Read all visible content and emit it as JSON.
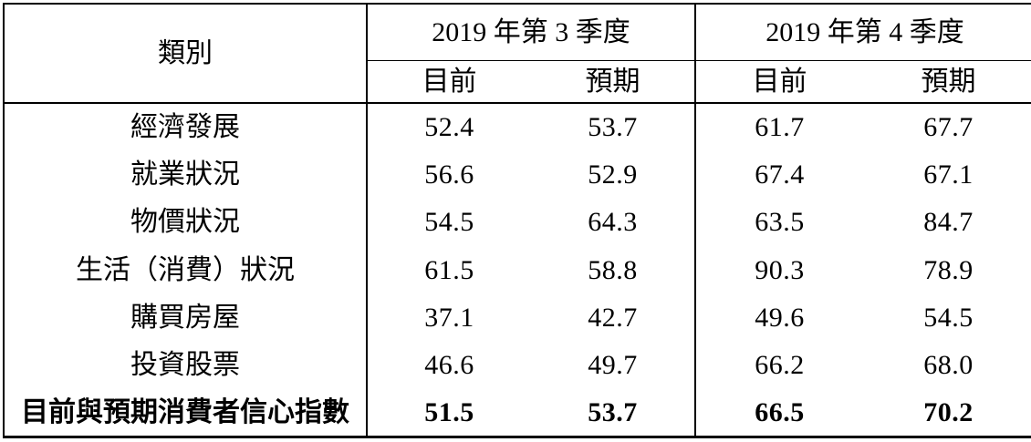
{
  "table": {
    "category_header": "類別",
    "quarters": [
      {
        "label": "2019 年第 3 季度",
        "sub": [
          "目前",
          "預期"
        ]
      },
      {
        "label": "2019 年第 4 季度",
        "sub": [
          "目前",
          "預期"
        ]
      }
    ],
    "rows": [
      {
        "label": "經濟發展",
        "values": [
          "52.4",
          "53.7",
          "61.7",
          "67.7"
        ]
      },
      {
        "label": "就業狀況",
        "values": [
          "56.6",
          "52.9",
          "67.4",
          "67.1"
        ]
      },
      {
        "label": "物價狀況",
        "values": [
          "54.5",
          "64.3",
          "63.5",
          "84.7"
        ]
      },
      {
        "label": "生活（消費）狀況",
        "values": [
          "61.5",
          "58.8",
          "90.3",
          "78.9"
        ]
      },
      {
        "label": "購買房屋",
        "values": [
          "37.1",
          "42.7",
          "49.6",
          "54.5"
        ]
      },
      {
        "label": "投資股票",
        "values": [
          "46.6",
          "49.7",
          "66.2",
          "68.0"
        ]
      },
      {
        "label": "目前與預期消費者信心指數",
        "values": [
          "51.5",
          "53.7",
          "66.5",
          "70.2"
        ]
      }
    ],
    "colors": {
      "border": "#000000",
      "text": "#000000",
      "background": "#ffffff"
    }
  }
}
